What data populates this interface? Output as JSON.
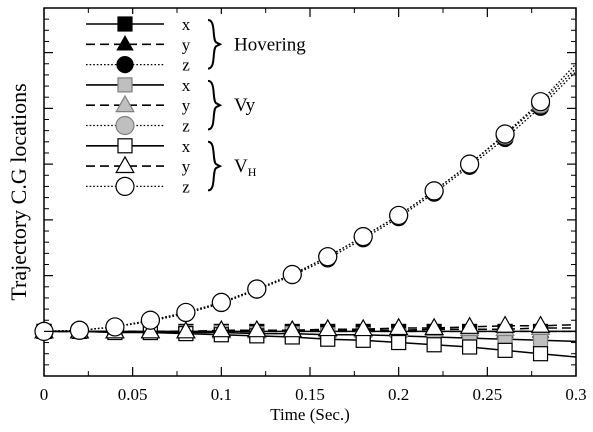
{
  "chart_data": {
    "type": "line",
    "xlabel": "Time (Sec.)",
    "ylabel": "Trajectory C.G locations",
    "xlim": [
      0,
      0.3
    ],
    "ylim": [
      -0.4,
      2.9
    ],
    "x_ticks": [
      0,
      0.05,
      0.1,
      0.15,
      0.2,
      0.25,
      0.3
    ],
    "x_tick_labels": [
      "0",
      "0.05",
      "0.1",
      "0.15",
      "0.2",
      "0.25",
      "0.3"
    ],
    "y_tick_labels_shown": false,
    "grid": false,
    "legend_placement": "top-left",
    "legend_groups": [
      {
        "label": "Hovering",
        "label_sub": "",
        "marker_fill": "#000000",
        "marker_stroke": "#000000"
      },
      {
        "label": "Vy",
        "label_sub": "",
        "marker_fill": "#bfbfbf",
        "marker_stroke": "#7f7f7f"
      },
      {
        "label": "V",
        "label_sub": "H",
        "marker_fill": "#ffffff",
        "marker_stroke": "#000000"
      }
    ],
    "legend_entry_labels": [
      "x",
      "y",
      "z"
    ],
    "marker_x": [
      0,
      0.02,
      0.04,
      0.06,
      0.08,
      0.1,
      0.12,
      0.14,
      0.16,
      0.18,
      0.2,
      0.22,
      0.24,
      0.26,
      0.28
    ],
    "series": [
      {
        "name": "x",
        "group": "Hovering",
        "line": "solid",
        "marker": "square",
        "fill": "#000000",
        "stroke": "#000000",
        "size": 7,
        "x": [
          0,
          0.02,
          0.04,
          0.06,
          0.08,
          0.1,
          0.12,
          0.14,
          0.16,
          0.18,
          0.2,
          0.22,
          0.24,
          0.26,
          0.28,
          0.3
        ],
        "y": [
          0,
          0,
          0,
          0,
          0,
          0,
          0,
          0,
          0,
          0,
          0,
          0,
          0,
          0,
          0,
          0
        ]
      },
      {
        "name": "y",
        "group": "Hovering",
        "line": "dashed",
        "marker": "triangle",
        "fill": "#000000",
        "stroke": "#000000",
        "size": 7,
        "x": [
          0,
          0.02,
          0.04,
          0.06,
          0.08,
          0.1,
          0.12,
          0.14,
          0.16,
          0.18,
          0.2,
          0.22,
          0.24,
          0.26,
          0.28,
          0.3
        ],
        "y": [
          0,
          0,
          0,
          0,
          0,
          0,
          0,
          0,
          0,
          0,
          0,
          0,
          0,
          0,
          0,
          0
        ]
      },
      {
        "name": "z",
        "group": "Hovering",
        "line": "dotted",
        "marker": "circle",
        "fill": "#000000",
        "stroke": "#000000",
        "size": 8,
        "x": [
          0,
          0.02,
          0.04,
          0.06,
          0.08,
          0.1,
          0.12,
          0.14,
          0.16,
          0.18,
          0.2,
          0.22,
          0.24,
          0.26,
          0.28,
          0.3
        ],
        "y": [
          0,
          0.01,
          0.04,
          0.09,
          0.16,
          0.25,
          0.37,
          0.5,
          0.65,
          0.83,
          1.02,
          1.24,
          1.48,
          1.73,
          2.01,
          2.33
        ]
      },
      {
        "name": "x",
        "group": "Vy",
        "line": "solid",
        "marker": "square",
        "fill": "#bfbfbf",
        "stroke": "#7f7f7f",
        "size": 7,
        "x": [
          0,
          0.02,
          0.04,
          0.06,
          0.08,
          0.1,
          0.12,
          0.14,
          0.16,
          0.18,
          0.2,
          0.22,
          0.24,
          0.26,
          0.28,
          0.3
        ],
        "y": [
          0,
          0,
          0,
          -0.01,
          -0.01,
          -0.01,
          -0.02,
          -0.02,
          -0.03,
          -0.03,
          -0.04,
          -0.05,
          -0.06,
          -0.07,
          -0.08,
          -0.09
        ]
      },
      {
        "name": "y",
        "group": "Vy",
        "line": "dashed",
        "marker": "triangle",
        "fill": "#bfbfbf",
        "stroke": "#7f7f7f",
        "size": 8,
        "x": [
          0,
          0.02,
          0.04,
          0.06,
          0.08,
          0.1,
          0.12,
          0.14,
          0.16,
          0.18,
          0.2,
          0.22,
          0.24,
          0.26,
          0.28,
          0.3
        ],
        "y": [
          0,
          0,
          0,
          0,
          0,
          0,
          0,
          0.01,
          0.01,
          0.01,
          0.01,
          0.02,
          0.02,
          0.02,
          0.03,
          0.03
        ]
      },
      {
        "name": "z",
        "group": "Vy",
        "line": "dotted",
        "marker": "circle",
        "fill": "#bfbfbf",
        "stroke": "#7f7f7f",
        "size": 9,
        "x": [
          0,
          0.02,
          0.04,
          0.06,
          0.08,
          0.1,
          0.12,
          0.14,
          0.16,
          0.18,
          0.2,
          0.22,
          0.24,
          0.26,
          0.28,
          0.3
        ],
        "y": [
          0,
          0.01,
          0.04,
          0.1,
          0.17,
          0.26,
          0.38,
          0.51,
          0.67,
          0.85,
          1.04,
          1.26,
          1.5,
          1.76,
          2.04,
          2.36
        ]
      },
      {
        "name": "x",
        "group": "VH",
        "line": "solid",
        "marker": "square",
        "fill": "#ffffff",
        "stroke": "#000000",
        "size": 7,
        "x": [
          0,
          0.02,
          0.04,
          0.06,
          0.08,
          0.1,
          0.12,
          0.14,
          0.16,
          0.18,
          0.2,
          0.22,
          0.24,
          0.26,
          0.28,
          0.3
        ],
        "y": [
          0,
          0,
          -0.01,
          -0.01,
          -0.02,
          -0.03,
          -0.04,
          -0.05,
          -0.07,
          -0.08,
          -0.1,
          -0.12,
          -0.14,
          -0.17,
          -0.2,
          -0.23
        ]
      },
      {
        "name": "y",
        "group": "VH",
        "line": "dashed",
        "marker": "triangle",
        "fill": "#ffffff",
        "stroke": "#000000",
        "size": 8,
        "x": [
          0,
          0.02,
          0.04,
          0.06,
          0.08,
          0.1,
          0.12,
          0.14,
          0.16,
          0.18,
          0.2,
          0.22,
          0.24,
          0.26,
          0.28,
          0.3
        ],
        "y": [
          0,
          0,
          0,
          0,
          0,
          0.01,
          0.01,
          0.01,
          0.02,
          0.02,
          0.03,
          0.03,
          0.04,
          0.05,
          0.05,
          0.06
        ]
      },
      {
        "name": "z",
        "group": "VH",
        "line": "dotted",
        "marker": "circle",
        "fill": "#ffffff",
        "stroke": "#000000",
        "size": 9,
        "x": [
          0,
          0.02,
          0.04,
          0.06,
          0.08,
          0.1,
          0.12,
          0.14,
          0.16,
          0.18,
          0.2,
          0.22,
          0.24,
          0.26,
          0.28,
          0.3
        ],
        "y": [
          0,
          0.01,
          0.04,
          0.1,
          0.17,
          0.26,
          0.38,
          0.51,
          0.67,
          0.85,
          1.04,
          1.26,
          1.5,
          1.77,
          2.06,
          2.4
        ]
      }
    ]
  }
}
